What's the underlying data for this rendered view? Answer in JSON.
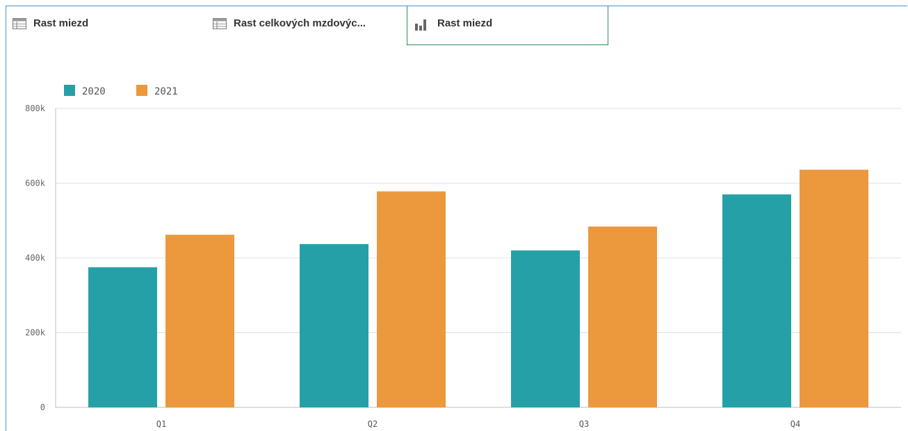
{
  "tabs": [
    {
      "label": "Rast miezd",
      "icon": "table-icon",
      "active": false
    },
    {
      "label": "Rast celkových mzdovýc...",
      "icon": "table-icon",
      "active": false
    },
    {
      "label": "Rast miezd",
      "icon": "bar-chart-icon",
      "active": true
    }
  ],
  "colors": {
    "series_2020": "#26a0a7",
    "series_2021": "#ec983d",
    "grid": "#e0e0e0",
    "frame": "#4a8fd4",
    "active_tab_border": "#2e8b57"
  },
  "chart_data": {
    "type": "bar",
    "categories": [
      "Q1",
      "Q2",
      "Q3",
      "Q4"
    ],
    "series": [
      {
        "name": "2020",
        "values": [
          375000,
          437000,
          420000,
          570000
        ]
      },
      {
        "name": "2021",
        "values": [
          462000,
          578000,
          484000,
          636000
        ]
      }
    ],
    "yticks": [
      "0",
      "200k",
      "400k",
      "600k",
      "800k"
    ],
    "ylim": [
      0,
      800000
    ],
    "grid": true,
    "legend_position": "top-left"
  }
}
